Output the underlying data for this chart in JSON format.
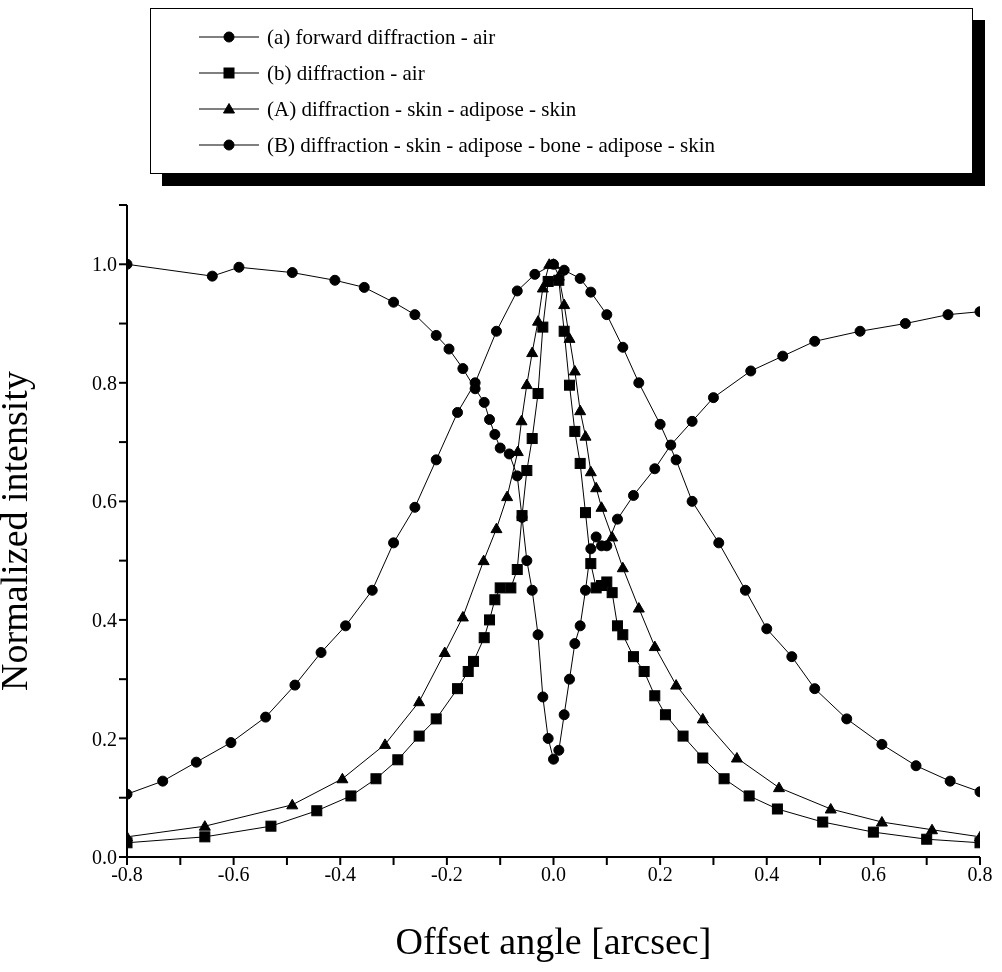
{
  "chart_data": {
    "type": "line",
    "xlabel": "Offset angle [arcsec]",
    "ylabel": "Normalized intensity",
    "xlim": [
      -0.8,
      0.8
    ],
    "ylim": [
      0,
      1.1
    ],
    "xticks": [
      {
        "value": -0.8,
        "label": "-0.8"
      },
      {
        "value": -0.7,
        "label": null
      },
      {
        "value": -0.6,
        "label": "-0.6"
      },
      {
        "value": -0.5,
        "label": null
      },
      {
        "value": -0.4,
        "label": "-0.4"
      },
      {
        "value": -0.3,
        "label": null
      },
      {
        "value": -0.2,
        "label": "-0.2"
      },
      {
        "value": -0.1,
        "label": null
      },
      {
        "value": 0,
        "label": "0.0"
      },
      {
        "value": 0.1,
        "label": null
      },
      {
        "value": 0.2,
        "label": "0.2"
      },
      {
        "value": 0.3,
        "label": null
      },
      {
        "value": 0.4,
        "label": "0.4"
      },
      {
        "value": 0.5,
        "label": null
      },
      {
        "value": 0.6,
        "label": "0.6"
      },
      {
        "value": 0.7,
        "label": null
      },
      {
        "value": 0.8,
        "label": "0.8"
      }
    ],
    "yticks": [
      {
        "value": 0,
        "label": "0.0"
      },
      {
        "value": 0.1,
        "label": null
      },
      {
        "value": 0.2,
        "label": "0.2"
      },
      {
        "value": 0.3,
        "label": null
      },
      {
        "value": 0.4,
        "label": "0.4"
      },
      {
        "value": 0.5,
        "label": null
      },
      {
        "value": 0.6,
        "label": "0.6"
      },
      {
        "value": 0.7,
        "label": null
      },
      {
        "value": 0.8,
        "label": "0.8"
      },
      {
        "value": 0.9,
        "label": null
      },
      {
        "value": 1.0,
        "label": "1.0"
      },
      {
        "value": 1.1,
        "label": null
      }
    ],
    "grid": false,
    "legend": "top",
    "line_style": "solid",
    "series": [
      {
        "name": "(a) forward diffraction - air",
        "color": "#000000",
        "marker": "circle",
        "x": [
          -0.8,
          -0.64,
          -0.59,
          -0.49,
          -0.41,
          -0.355,
          -0.3,
          -0.26,
          -0.22,
          -0.196,
          -0.17,
          -0.147,
          -0.13,
          -0.12,
          -0.11,
          -0.1,
          -0.083,
          -0.068,
          -0.059,
          -0.05,
          -0.04,
          -0.029,
          -0.02,
          -0.01,
          0,
          0.01,
          0.02,
          0.03,
          0.04,
          0.05,
          0.06,
          0.07,
          0.08,
          0.09,
          0.1,
          0.12,
          0.15,
          0.19,
          0.22,
          0.26,
          0.3,
          0.37,
          0.43,
          0.49,
          0.575,
          0.66,
          0.74,
          0.8
        ],
        "values": [
          1.0,
          0.98,
          0.995,
          0.986,
          0.973,
          0.961,
          0.936,
          0.915,
          0.88,
          0.857,
          0.824,
          0.79,
          0.767,
          0.738,
          0.713,
          0.69,
          0.68,
          0.643,
          0.573,
          0.5,
          0.45,
          0.375,
          0.27,
          0.2,
          0.165,
          0.18,
          0.24,
          0.3,
          0.36,
          0.39,
          0.45,
          0.52,
          0.54,
          0.525,
          0.525,
          0.57,
          0.61,
          0.655,
          0.695,
          0.735,
          0.775,
          0.82,
          0.845,
          0.87,
          0.887,
          0.9,
          0.915,
          0.92
        ]
      },
      {
        "name": "(b) diffraction - air",
        "color": "#000000",
        "marker": "square",
        "x": [
          -0.8,
          -0.654,
          -0.53,
          -0.444,
          -0.38,
          -0.333,
          -0.292,
          -0.252,
          -0.22,
          -0.18,
          -0.16,
          -0.15,
          -0.13,
          -0.12,
          -0.11,
          -0.1,
          -0.08,
          -0.068,
          -0.059,
          -0.05,
          -0.04,
          -0.029,
          -0.02,
          -0.01,
          0.01,
          0.02,
          0.03,
          0.04,
          0.05,
          0.06,
          0.07,
          0.08,
          0.09,
          0.1,
          0.11,
          0.12,
          0.13,
          0.15,
          0.17,
          0.19,
          0.21,
          0.243,
          0.28,
          0.32,
          0.367,
          0.42,
          0.505,
          0.6,
          0.7,
          0.8
        ],
        "values": [
          0.024,
          0.034,
          0.052,
          0.078,
          0.103,
          0.132,
          0.164,
          0.204,
          0.233,
          0.284,
          0.313,
          0.33,
          0.37,
          0.4,
          0.434,
          0.454,
          0.454,
          0.485,
          0.576,
          0.652,
          0.706,
          0.782,
          0.894,
          0.971,
          0.973,
          0.887,
          0.796,
          0.718,
          0.664,
          0.581,
          0.495,
          0.454,
          0.458,
          0.464,
          0.446,
          0.39,
          0.375,
          0.338,
          0.313,
          0.272,
          0.24,
          0.204,
          0.167,
          0.132,
          0.103,
          0.081,
          0.059,
          0.042,
          0.03,
          0.024
        ]
      },
      {
        "name": "(A) diffraction - skin - adipose - skin",
        "color": "#000000",
        "marker": "triangle",
        "x": [
          -0.8,
          -0.654,
          -0.49,
          -0.396,
          -0.316,
          -0.252,
          -0.204,
          -0.17,
          -0.131,
          -0.107,
          -0.087,
          -0.067,
          -0.06,
          -0.05,
          -0.04,
          -0.029,
          -0.02,
          -0.008,
          0.0,
          0.01,
          0.02,
          0.03,
          0.04,
          0.05,
          0.06,
          0.07,
          0.08,
          0.09,
          0.11,
          0.13,
          0.16,
          0.19,
          0.23,
          0.28,
          0.344,
          0.423,
          0.52,
          0.616,
          0.71,
          0.8
        ],
        "values": [
          0.034,
          0.052,
          0.088,
          0.132,
          0.19,
          0.262,
          0.345,
          0.405,
          0.5,
          0.554,
          0.608,
          0.684,
          0.736,
          0.797,
          0.851,
          0.904,
          0.96,
          1.0,
          1.0,
          0.98,
          0.932,
          0.875,
          0.82,
          0.753,
          0.71,
          0.65,
          0.623,
          0.59,
          0.54,
          0.488,
          0.42,
          0.355,
          0.29,
          0.233,
          0.167,
          0.117,
          0.081,
          0.059,
          0.046,
          0.034
        ]
      },
      {
        "name": "(B) diffraction - skin - adipose - bone - adipose - skin",
        "color": "#000000",
        "marker": "circle",
        "x": [
          -0.8,
          -0.733,
          -0.67,
          -0.605,
          -0.54,
          -0.485,
          -0.436,
          -0.39,
          -0.34,
          -0.3,
          -0.26,
          -0.22,
          -0.18,
          -0.147,
          -0.107,
          -0.068,
          -0.035,
          0.0,
          0.02,
          0.05,
          0.07,
          0.1,
          0.13,
          0.16,
          0.2,
          0.23,
          0.26,
          0.31,
          0.36,
          0.4,
          0.447,
          0.49,
          0.55,
          0.616,
          0.68,
          0.744,
          0.8
        ],
        "values": [
          0.106,
          0.128,
          0.16,
          0.193,
          0.236,
          0.29,
          0.345,
          0.39,
          0.45,
          0.53,
          0.59,
          0.67,
          0.75,
          0.8,
          0.887,
          0.955,
          0.983,
          1.0,
          0.99,
          0.976,
          0.953,
          0.915,
          0.86,
          0.8,
          0.73,
          0.67,
          0.6,
          0.53,
          0.45,
          0.385,
          0.338,
          0.284,
          0.233,
          0.19,
          0.154,
          0.128,
          0.11
        ]
      }
    ]
  }
}
